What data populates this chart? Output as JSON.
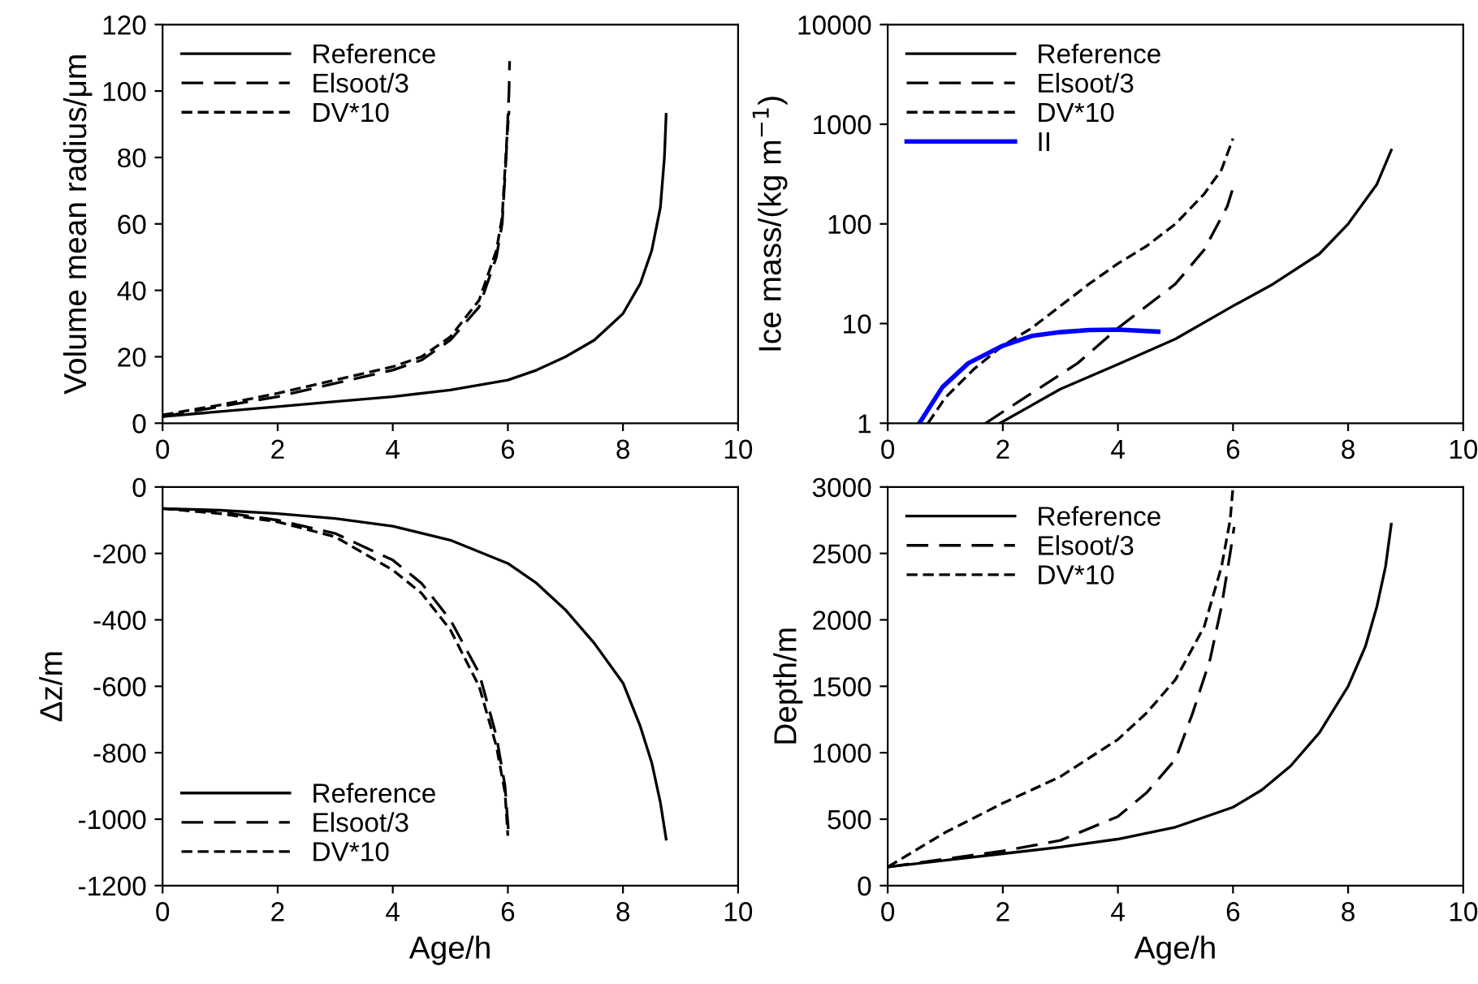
{
  "chart_data": [
    {
      "type": "line",
      "ylabel": "Volume mean radius/μm",
      "xlim": [
        0,
        10
      ],
      "xticks": [
        0,
        2,
        4,
        6,
        8,
        10
      ],
      "ylim": [
        0,
        120
      ],
      "yticks": [
        0,
        20,
        40,
        60,
        80,
        100,
        120
      ],
      "legend": "top left",
      "grid": false,
      "series": [
        {
          "name": "Reference",
          "color": "#000000",
          "line_style": "solid",
          "x": [
            0,
            1,
            2,
            3,
            4,
            5,
            6,
            6.5,
            7,
            7.5,
            8,
            8.3,
            8.5,
            8.65,
            8.72,
            8.75
          ],
          "values": [
            2,
            3.5,
            5,
            6.5,
            8,
            10,
            13,
            16,
            20,
            25,
            33,
            42,
            52,
            65,
            80,
            93
          ]
        },
        {
          "name": "Elsoot/3",
          "color": "#000000",
          "line_style": "dashed",
          "x": [
            0,
            1,
            2,
            3,
            4,
            4.5,
            5,
            5.5,
            5.8,
            5.9,
            5.97,
            6.02,
            6.03
          ],
          "values": [
            2,
            5,
            8,
            12,
            16,
            19,
            25,
            35,
            50,
            60,
            80,
            100,
            109
          ]
        },
        {
          "name": "DV*10",
          "color": "#000000",
          "line_style": "dashed",
          "x": [
            0,
            1,
            2,
            3,
            4,
            4.5,
            5,
            5.5,
            5.8,
            5.9,
            5.98,
            6.02
          ],
          "values": [
            2.5,
            5.5,
            9,
            13,
            17,
            20,
            26,
            37,
            52,
            62,
            85,
            94
          ]
        }
      ]
    },
    {
      "type": "line",
      "ylabel": "Ice mass/(kg m$^{−1}$)",
      "log": "y",
      "xlim": [
        0,
        10
      ],
      "xticks": [
        0,
        2,
        4,
        6,
        8,
        10
      ],
      "ylim": [
        1,
        10000
      ],
      "yticks": [
        1,
        10,
        100,
        1000,
        10000
      ],
      "legend": "top left",
      "grid": false,
      "series": [
        {
          "name": "Reference",
          "color": "#000000",
          "line_style": "solid",
          "x": [
            1.95,
            3,
            4,
            5,
            6,
            6.7,
            7.5,
            8,
            8.5,
            8.75
          ],
          "values": [
            1,
            2.2,
            3.9,
            7,
            15,
            25,
            50,
            100,
            250,
            550
          ]
        },
        {
          "name": "Elsoot/3",
          "color": "#000000",
          "line_style": "dashed",
          "x": [
            1.7,
            2.5,
            3.3,
            4,
            4.5,
            5,
            5.5,
            5.9,
            6
          ],
          "values": [
            1,
            2,
            4,
            9,
            15,
            25,
            55,
            150,
            230
          ]
        },
        {
          "name": "DV*10",
          "color": "#000000",
          "line_style": "dashed",
          "x": [
            0.7,
            1,
            1.5,
            2,
            2.5,
            3,
            3.5,
            4,
            4.5,
            5,
            5.5,
            5.8,
            6
          ],
          "values": [
            1,
            1.8,
            3.5,
            6,
            9,
            15,
            25,
            40,
            60,
            100,
            200,
            350,
            720
          ]
        },
        {
          "name": "II",
          "color": "#0000ff",
          "line_style": "solid",
          "x": [
            0.55,
            0.95,
            1.4,
            2,
            2.5,
            3,
            3.5,
            4,
            4.7
          ],
          "values": [
            1,
            2.3,
            4,
            6,
            7.5,
            8.2,
            8.6,
            8.7,
            8.3
          ]
        }
      ]
    },
    {
      "type": "line",
      "xlabel": "Age/h",
      "ylabel": "Δz/m",
      "xlim": [
        0,
        10
      ],
      "xticks": [
        0,
        2,
        4,
        6,
        8,
        10
      ],
      "ylim": [
        -1200,
        0
      ],
      "yticks": [
        -1200,
        -1000,
        -800,
        -600,
        -400,
        -200,
        0
      ],
      "legend": "bottom left",
      "grid": false,
      "series": [
        {
          "name": "Reference",
          "color": "#000000",
          "line_style": "solid",
          "x": [
            0,
            1,
            2,
            3,
            4,
            5,
            6,
            6.5,
            7,
            7.5,
            8,
            8.3,
            8.5,
            8.65,
            8.75
          ],
          "values": [
            -65,
            -70,
            -80,
            -95,
            -118,
            -160,
            -230,
            -290,
            -370,
            -470,
            -590,
            -720,
            -830,
            -950,
            -1060
          ]
        },
        {
          "name": "Elsoot/3",
          "color": "#000000",
          "line_style": "dashed",
          "x": [
            0,
            1,
            2,
            3,
            4,
            4.5,
            5,
            5.5,
            5.8,
            5.95,
            6.02
          ],
          "values": [
            -65,
            -75,
            -100,
            -140,
            -220,
            -290,
            -400,
            -560,
            -750,
            -900,
            -1060
          ]
        },
        {
          "name": "DV*10",
          "color": "#000000",
          "line_style": "dashed",
          "x": [
            0,
            1,
            2,
            3,
            4,
            4.5,
            5,
            5.5,
            5.8,
            5.95,
            6
          ],
          "values": [
            -65,
            -80,
            -105,
            -150,
            -250,
            -320,
            -430,
            -600,
            -780,
            -920,
            -1050
          ]
        }
      ]
    },
    {
      "type": "line",
      "xlabel": "Age/h",
      "ylabel": "Depth/m",
      "xlim": [
        0,
        10
      ],
      "xticks": [
        0,
        2,
        4,
        6,
        8,
        10
      ],
      "ylim": [
        0,
        3000
      ],
      "yticks": [
        0,
        500,
        1000,
        1500,
        2000,
        2500,
        3000
      ],
      "legend": "top left",
      "grid": false,
      "series": [
        {
          "name": "Reference",
          "color": "#000000",
          "line_style": "solid",
          "x": [
            0,
            1,
            2,
            3,
            4,
            5,
            6,
            6.5,
            7,
            7.5,
            8,
            8.3,
            8.5,
            8.65,
            8.75
          ],
          "values": [
            140,
            190,
            240,
            290,
            350,
            440,
            590,
            720,
            900,
            1150,
            1500,
            1800,
            2100,
            2400,
            2720
          ]
        },
        {
          "name": "Elsoot/3",
          "color": "#000000",
          "line_style": "dashed",
          "x": [
            0,
            1,
            2,
            3,
            4,
            4.5,
            5,
            5.3,
            5.6,
            5.8,
            5.95,
            6.02
          ],
          "values": [
            140,
            200,
            260,
            340,
            520,
            700,
            950,
            1300,
            1700,
            2100,
            2500,
            2700
          ]
        },
        {
          "name": "DV*10",
          "color": "#000000",
          "line_style": "dashed",
          "x": [
            0,
            1,
            2,
            3,
            4,
            4.5,
            5,
            5.5,
            5.8,
            5.95,
            6
          ],
          "values": [
            140,
            400,
            620,
            820,
            1100,
            1300,
            1550,
            1950,
            2400,
            2750,
            3000
          ]
        }
      ]
    }
  ]
}
